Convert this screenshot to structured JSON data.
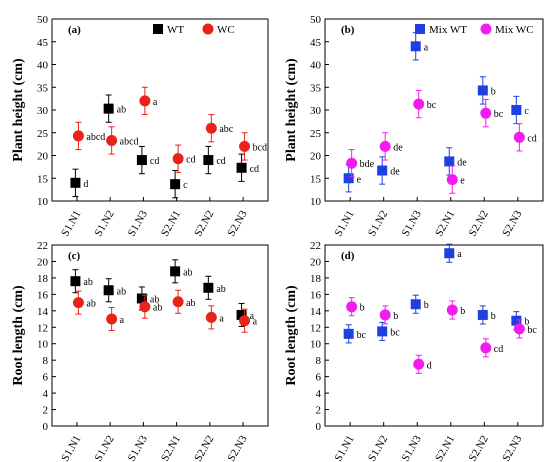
{
  "chart_data": [
    {
      "panel": "(a)",
      "type": "scatter",
      "categories": [
        "S1.N1",
        "S1.N2",
        "S1.N3",
        "S2.N1",
        "S2.N2",
        "S2.N3"
      ],
      "ylabel": "Plant height (cm)",
      "ylim": [
        10,
        50
      ],
      "yticks": [
        10,
        15,
        20,
        25,
        30,
        35,
        40,
        45,
        50
      ],
      "legend_position": "top-right",
      "series": [
        {
          "name": "WT",
          "color": "#000000",
          "marker": "square",
          "values": [
            14.0,
            30.3,
            19.0,
            13.7,
            19.0,
            17.3
          ],
          "errors": [
            3.0,
            3.0,
            3.0,
            3.0,
            3.0,
            3.0
          ],
          "labels": [
            "d",
            "ab",
            "cd",
            "c",
            "cd",
            "cd"
          ]
        },
        {
          "name": "WC",
          "color": "#e8241a",
          "marker": "circle",
          "values": [
            24.3,
            23.3,
            32.0,
            19.3,
            26.0,
            22.0
          ],
          "errors": [
            3.0,
            3.0,
            3.0,
            3.0,
            3.0,
            3.0
          ],
          "labels": [
            "abcd",
            "abcd",
            "a",
            "cd",
            "abc",
            "bcd"
          ]
        }
      ]
    },
    {
      "panel": "(b)",
      "type": "scatter",
      "categories": [
        "S1.N1",
        "S1.N2",
        "S1.N3",
        "S2.N1",
        "S2.N2",
        "S2.N3"
      ],
      "ylabel": "Plant height (cm)",
      "ylim": [
        10,
        50
      ],
      "yticks": [
        10,
        15,
        20,
        25,
        30,
        35,
        40,
        45,
        50
      ],
      "legend_position": "top-right",
      "series": [
        {
          "name": "Mix WT",
          "color": "#1f3fe0",
          "marker": "square",
          "values": [
            15.0,
            16.7,
            44.0,
            18.7,
            34.3,
            30.0
          ],
          "errors": [
            3.0,
            3.0,
            3.0,
            3.0,
            3.0,
            3.0
          ],
          "labels": [
            "e",
            "de",
            "a",
            "de",
            "b",
            "c"
          ]
        },
        {
          "name": "Mix WC",
          "color": "#f21bf0",
          "marker": "circle",
          "values": [
            18.3,
            22.0,
            31.3,
            14.7,
            29.3,
            24.0
          ],
          "errors": [
            3.0,
            3.0,
            3.0,
            3.0,
            3.0,
            3.0
          ],
          "labels": [
            "bde",
            "de",
            "bc",
            "e",
            "bc",
            "cd"
          ]
        }
      ]
    },
    {
      "panel": "(c)",
      "type": "scatter",
      "categories": [
        "S1.N1",
        "S1.N2",
        "S1.N3",
        "S2.N1",
        "S2.N2",
        "S2.N3"
      ],
      "ylabel": "Root length (cm)",
      "ylim": [
        0,
        22
      ],
      "yticks": [
        0,
        2,
        4,
        6,
        8,
        10,
        12,
        14,
        16,
        18,
        20,
        22
      ],
      "series": [
        {
          "name": "WT",
          "color": "#000000",
          "marker": "square",
          "values": [
            17.6,
            16.5,
            15.5,
            18.8,
            16.8,
            13.5
          ],
          "errors": [
            1.4,
            1.4,
            1.4,
            1.4,
            1.4,
            1.4
          ],
          "labels": [
            "ab",
            "ab",
            "ab",
            "ab",
            "ab",
            "a"
          ]
        },
        {
          "name": "WC",
          "color": "#e8241a",
          "marker": "circle",
          "values": [
            15.0,
            13.0,
            14.5,
            15.1,
            13.2,
            12.8
          ],
          "errors": [
            1.4,
            1.4,
            1.4,
            1.4,
            1.4,
            1.4
          ],
          "labels": [
            "ab",
            "a",
            "ab",
            "ab",
            "a",
            "a"
          ]
        }
      ]
    },
    {
      "panel": "(d)",
      "type": "scatter",
      "categories": [
        "S1.N1",
        "S1.N2",
        "S1.N3",
        "S2.N1",
        "S2.N2",
        "S2.N3"
      ],
      "ylabel": "Root length (cm)",
      "ylim": [
        0,
        22
      ],
      "yticks": [
        0,
        2,
        4,
        6,
        8,
        10,
        12,
        14,
        16,
        18,
        20,
        22
      ],
      "series": [
        {
          "name": "Mix WT",
          "color": "#1f3fe0",
          "marker": "square",
          "values": [
            11.2,
            11.5,
            14.8,
            21.0,
            13.5,
            12.8
          ],
          "errors": [
            1.1,
            1.1,
            1.1,
            1.1,
            1.1,
            1.1
          ],
          "labels": [
            "bc",
            "bc",
            "b",
            "a",
            "b",
            "b"
          ]
        },
        {
          "name": "Mix WC",
          "color": "#f21bf0",
          "marker": "circle",
          "values": [
            14.5,
            13.5,
            7.5,
            14.1,
            9.5,
            11.8
          ],
          "errors": [
            1.1,
            1.1,
            1.1,
            1.1,
            1.1,
            1.1
          ],
          "labels": [
            "b",
            "b",
            "d",
            "b",
            "cd",
            "bc"
          ]
        }
      ]
    }
  ]
}
